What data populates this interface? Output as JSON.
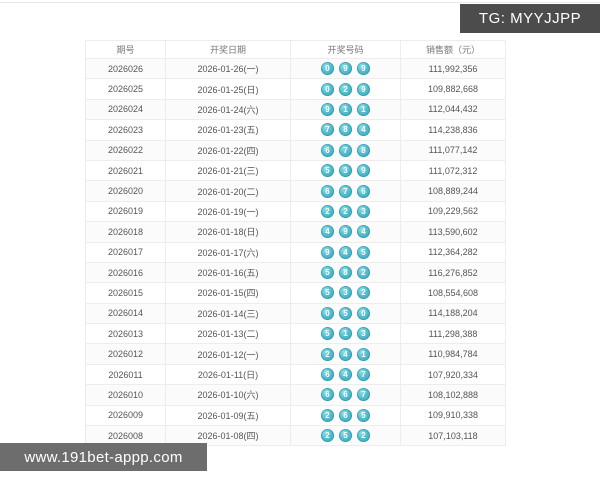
{
  "overlays": {
    "tg_badge": "TG: MYYJJPP",
    "site_badge": "www.191bet-appp.com"
  },
  "table": {
    "headers": [
      "期号",
      "开奖日期",
      "开奖号码",
      "销售额（元）"
    ],
    "rows": [
      {
        "issue": "2026026",
        "date": "2026-01-26(一)",
        "numbers": [
          "0",
          "9",
          "9"
        ],
        "sales": "111,992,356"
      },
      {
        "issue": "2026025",
        "date": "2026-01-25(日)",
        "numbers": [
          "0",
          "2",
          "9"
        ],
        "sales": "109,882,668"
      },
      {
        "issue": "2026024",
        "date": "2026-01-24(六)",
        "numbers": [
          "9",
          "1",
          "1"
        ],
        "sales": "112,044,432"
      },
      {
        "issue": "2026023",
        "date": "2026-01-23(五)",
        "numbers": [
          "7",
          "8",
          "4"
        ],
        "sales": "114,238,836"
      },
      {
        "issue": "2026022",
        "date": "2026-01-22(四)",
        "numbers": [
          "6",
          "7",
          "8"
        ],
        "sales": "111,077,142"
      },
      {
        "issue": "2026021",
        "date": "2026-01-21(三)",
        "numbers": [
          "5",
          "3",
          "9"
        ],
        "sales": "111,072,312"
      },
      {
        "issue": "2026020",
        "date": "2026-01-20(二)",
        "numbers": [
          "6",
          "7",
          "6"
        ],
        "sales": "108,889,244"
      },
      {
        "issue": "2026019",
        "date": "2026-01-19(一)",
        "numbers": [
          "2",
          "2",
          "3"
        ],
        "sales": "109,229,562"
      },
      {
        "issue": "2026018",
        "date": "2026-01-18(日)",
        "numbers": [
          "4",
          "9",
          "4"
        ],
        "sales": "113,590,602"
      },
      {
        "issue": "2026017",
        "date": "2026-01-17(六)",
        "numbers": [
          "9",
          "4",
          "5"
        ],
        "sales": "112,364,282"
      },
      {
        "issue": "2026016",
        "date": "2026-01-16(五)",
        "numbers": [
          "5",
          "8",
          "2"
        ],
        "sales": "116,276,852"
      },
      {
        "issue": "2026015",
        "date": "2026-01-15(四)",
        "numbers": [
          "5",
          "3",
          "2"
        ],
        "sales": "108,554,608"
      },
      {
        "issue": "2026014",
        "date": "2026-01-14(三)",
        "numbers": [
          "0",
          "5",
          "0"
        ],
        "sales": "114,188,204"
      },
      {
        "issue": "2026013",
        "date": "2026-01-13(二)",
        "numbers": [
          "5",
          "1",
          "3"
        ],
        "sales": "111,298,388"
      },
      {
        "issue": "2026012",
        "date": "2026-01-12(一)",
        "numbers": [
          "2",
          "4",
          "1"
        ],
        "sales": "110,984,784"
      },
      {
        "issue": "2026011",
        "date": "2026-01-11(日)",
        "numbers": [
          "6",
          "4",
          "7"
        ],
        "sales": "107,920,334"
      },
      {
        "issue": "2026010",
        "date": "2026-01-10(六)",
        "numbers": [
          "6",
          "6",
          "7"
        ],
        "sales": "108,102,888"
      },
      {
        "issue": "2026009",
        "date": "2026-01-09(五)",
        "numbers": [
          "2",
          "6",
          "5"
        ],
        "sales": "109,910,338"
      },
      {
        "issue": "2026008",
        "date": "2026-01-08(四)",
        "numbers": [
          "2",
          "5",
          "2"
        ],
        "sales": "107,103,118"
      }
    ]
  },
  "colors": {
    "ball": "#46b0c4",
    "tg_badge_bg": "#4c4c4c",
    "site_badge_bg": "#6d6d6d",
    "grid_line": "#ededed"
  }
}
